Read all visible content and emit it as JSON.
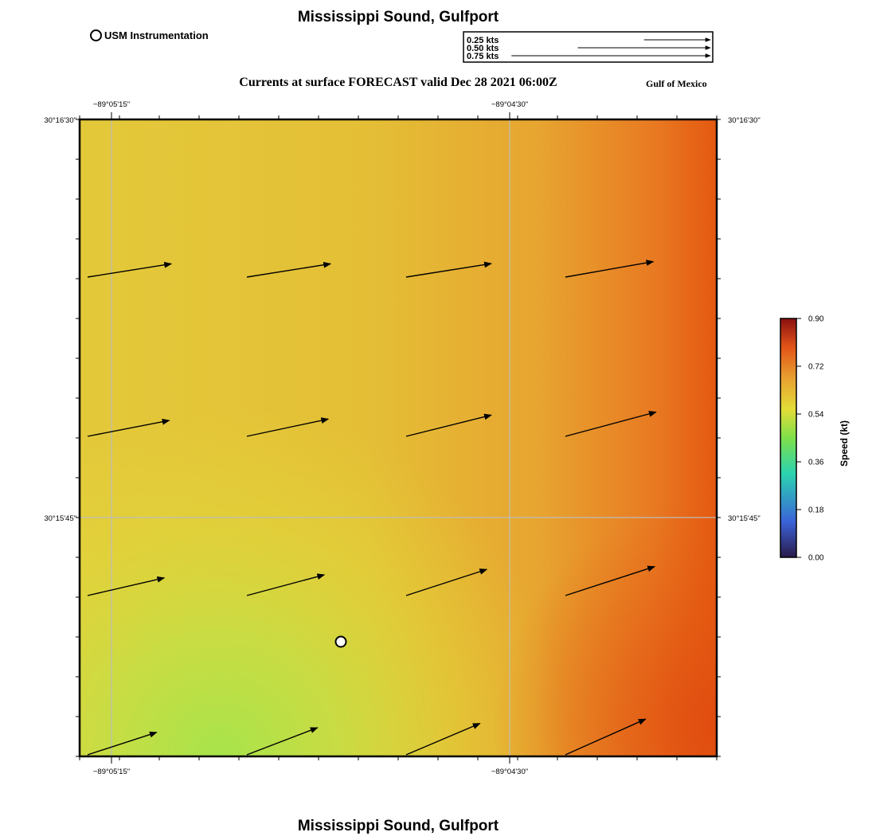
{
  "header": {
    "title": "Mississippi Sound, Gulfport",
    "subtitle": "Currents at surface FORECAST valid Dec 28 2021 06:00Z",
    "region": "Gulf of Mexico",
    "footer_title": "Mississippi Sound, Gulfport"
  },
  "legend": {
    "station_label": "USM Instrumentation",
    "scale_arrows": [
      {
        "label": "0.25 kts",
        "speed": 0.25
      },
      {
        "label": "0.50 kts",
        "speed": 0.5
      },
      {
        "label": "0.75 kts",
        "speed": 0.75
      }
    ]
  },
  "axes": {
    "lon_ticks": [
      "−89°05'15\"",
      "−89°04'30\""
    ],
    "lat_ticks": [
      "30°16'30\"",
      "30°15'45\""
    ]
  },
  "colorbar": {
    "label": "Speed (kt)",
    "range": [
      0.0,
      0.9
    ],
    "ticks": [
      "0.00",
      "0.18",
      "0.36",
      "0.54",
      "0.72",
      "0.90"
    ],
    "colors": [
      "#2b1a4a",
      "#3a64d8",
      "#2bd3b0",
      "#7ee04a",
      "#e3dc38",
      "#e8a030",
      "#e25418",
      "#8a1010"
    ]
  },
  "field": {
    "colors": {
      "sw_green": "#a7e44b",
      "center_yellow": "#e4c83a",
      "ne_orange": "#e6a030",
      "e_red": "#e45810"
    },
    "vectors": [
      {
        "row": 0,
        "col": 0,
        "speed": 0.56,
        "direction_deg": 81
      },
      {
        "row": 0,
        "col": 1,
        "speed": 0.56,
        "direction_deg": 81
      },
      {
        "row": 0,
        "col": 2,
        "speed": 0.57,
        "direction_deg": 81
      },
      {
        "row": 0,
        "col": 3,
        "speed": 0.59,
        "direction_deg": 80
      },
      {
        "row": 1,
        "col": 0,
        "speed": 0.55,
        "direction_deg": 79
      },
      {
        "row": 1,
        "col": 1,
        "speed": 0.55,
        "direction_deg": 78
      },
      {
        "row": 1,
        "col": 2,
        "speed": 0.58,
        "direction_deg": 76
      },
      {
        "row": 1,
        "col": 3,
        "speed": 0.62,
        "direction_deg": 75
      },
      {
        "row": 2,
        "col": 0,
        "speed": 0.52,
        "direction_deg": 77
      },
      {
        "row": 2,
        "col": 1,
        "speed": 0.53,
        "direction_deg": 75
      },
      {
        "row": 2,
        "col": 2,
        "speed": 0.56,
        "direction_deg": 72
      },
      {
        "row": 2,
        "col": 3,
        "speed": 0.62,
        "direction_deg": 72
      },
      {
        "row": 3,
        "col": 0,
        "speed": 0.48,
        "direction_deg": 72
      },
      {
        "row": 3,
        "col": 1,
        "speed": 0.5,
        "direction_deg": 69
      },
      {
        "row": 3,
        "col": 2,
        "speed": 0.53,
        "direction_deg": 67
      },
      {
        "row": 3,
        "col": 3,
        "speed": 0.58,
        "direction_deg": 66
      }
    ],
    "station": {
      "row": 2.3,
      "col": 1.6
    }
  }
}
